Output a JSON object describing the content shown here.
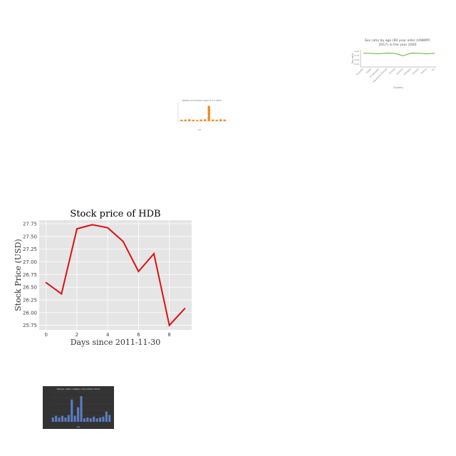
{
  "chart_data": [
    {
      "type": "line",
      "title": "Stock price of HDB",
      "xlabel": "Days since 2011-11-30",
      "ylabel": "Stock Price (USD)",
      "x": [
        0,
        1,
        2,
        3,
        4,
        5,
        6,
        7,
        8,
        9
      ],
      "series": [
        {
          "values": [
            26.59,
            26.37,
            27.65,
            27.73,
            27.67,
            27.4,
            26.81,
            27.16,
            25.75,
            26.08
          ]
        }
      ],
      "xticks": [
        "0",
        "2",
        "4",
        "6",
        "8"
      ],
      "yticks": [
        "25.75",
        "26.00",
        "26.25",
        "26.50",
        "26.75",
        "27.00",
        "27.25",
        "27.50",
        "27.75"
      ],
      "xlim": [
        -0.45,
        9.45
      ],
      "ylim": [
        25.66,
        27.82
      ],
      "grid": true,
      "colors": {
        "line": "#dd1111",
        "panel": "#e5e5e5",
        "grid": "#ffffff"
      }
    },
    {
      "type": "line",
      "title": "Sex ratio by age (60 year olds) (UNWPP, 2017) in the year 2000",
      "xlabel": "Country",
      "ylabel": "Sex ratio",
      "categories": [
        "Ecuador",
        "Egypt",
        "El Salvador",
        "Equatorial Guinea",
        "Eritrea",
        "Estonia",
        "Ethiopia",
        "Finland",
        "France",
        "Fiji"
      ],
      "series": [
        {
          "values": [
            0.97,
            0.95,
            0.93,
            0.98,
            0.95,
            0.79,
            0.97,
            0.96,
            0.92,
            0.96
          ]
        }
      ],
      "ylim": [
        0,
        1.2
      ],
      "colors": {
        "line": "#66b032"
      }
    },
    {
      "type": "bar",
      "title": "Number of recorded cases of A in 2013",
      "categories": [
        "c1",
        "c2",
        "c3",
        "c4",
        "c5",
        "c6",
        "c7",
        "c8",
        "c9",
        "c10",
        "c11",
        "c12"
      ],
      "values": [
        30,
        35,
        40,
        30,
        25,
        35,
        40,
        330,
        35,
        30,
        40,
        35
      ],
      "ylim": [
        0,
        400
      ],
      "colors": {
        "bar": "#f08c1e"
      }
    },
    {
      "type": "bar",
      "title": "GDP per capita in Western Asia (1990 to 2015)",
      "categories": [
        "c1",
        "c2",
        "c3",
        "c4",
        "c5",
        "c6",
        "c7",
        "c8",
        "c9",
        "c10",
        "c11",
        "c12",
        "c13",
        "c14",
        "c15",
        "c16",
        "c17",
        "c18",
        "c19"
      ],
      "values": [
        5,
        7,
        5,
        7,
        5,
        8,
        26,
        7,
        17,
        30,
        4,
        5,
        4,
        6,
        4,
        5,
        6,
        12,
        8
      ],
      "ylim": [
        0,
        35
      ],
      "colors": {
        "bar": "#5a7dc0",
        "panel": "#333333"
      }
    }
  ]
}
